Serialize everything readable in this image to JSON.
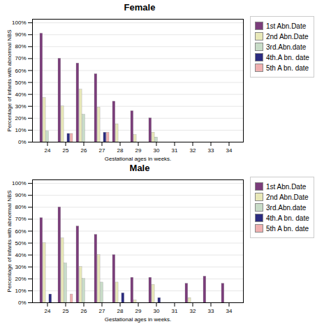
{
  "chart_data": [
    {
      "type": "bar",
      "title": "Female",
      "xlabel": "Gestational ages in weeks.",
      "ylabel": "Percentage of infants with abnormal NBS",
      "categories": [
        "24",
        "25",
        "26",
        "27",
        "28",
        "29",
        "30",
        "31",
        "32",
        "33",
        "34"
      ],
      "series": [
        {
          "name": "1st Abn.Date",
          "color": "#7B3D7B",
          "values": [
            91,
            70,
            66,
            57,
            34,
            26,
            20,
            0,
            0,
            0,
            0
          ]
        },
        {
          "name": "2nd Abn.Date",
          "color": "#E8E8B8",
          "values": [
            37,
            30,
            44,
            29,
            15,
            6,
            8,
            0,
            0,
            0,
            0
          ]
        },
        {
          "name": "3rd.Abn.date",
          "color": "#C8DCC8",
          "values": [
            9,
            0,
            23,
            0,
            0,
            0,
            4,
            0,
            0,
            0,
            0
          ]
        },
        {
          "name": "4th.A bn. date",
          "color": "#2B2B80",
          "values": [
            0,
            7,
            0,
            8,
            0,
            0,
            0,
            0,
            0,
            0,
            0
          ]
        },
        {
          "name": "5th A bn. date",
          "color": "#F0B0B0",
          "values": [
            0,
            7,
            0,
            8,
            0,
            0,
            0,
            0,
            0,
            0,
            0
          ]
        }
      ],
      "ylim": [
        0,
        103
      ],
      "yticks": [
        {
          "value": 0,
          "label": "0%"
        },
        {
          "value": 10,
          "label": "10%"
        },
        {
          "value": 20,
          "label": "20%"
        },
        {
          "value": 30,
          "label": "30%"
        },
        {
          "value": 40,
          "label": "40%"
        },
        {
          "value": 50,
          "label": "50%"
        },
        {
          "value": 60,
          "label": "60%"
        },
        {
          "value": 70,
          "label": "70%"
        },
        {
          "value": 80,
          "label": "80%"
        },
        {
          "value": 90,
          "label": "90%"
        },
        {
          "value": 100,
          "label": "100%"
        }
      ],
      "grid": true,
      "legend": "right"
    },
    {
      "type": "bar",
      "title": "Male",
      "xlabel": "Gestational ages in weeks.",
      "ylabel": "Percentage of infants with abnormal NBS",
      "categories": [
        "24",
        "25",
        "26",
        "27",
        "28",
        "29",
        "30",
        "31",
        "32",
        "33",
        "34"
      ],
      "series": [
        {
          "name": "1st Abn.Date",
          "color": "#7B3D7B",
          "values": [
            71,
            80,
            64,
            57,
            40,
            21,
            21,
            0,
            16,
            22,
            16
          ]
        },
        {
          "name": "2nd Abn.Date",
          "color": "#E8E8B8",
          "values": [
            50,
            54,
            30,
            40,
            17,
            2,
            15,
            0,
            4,
            0,
            0
          ]
        },
        {
          "name": "3rd.Abn.date",
          "color": "#C8DCC8",
          "values": [
            0,
            33,
            20,
            17,
            0,
            0,
            0,
            0,
            0,
            0,
            0
          ]
        },
        {
          "name": "4th.A bn. date",
          "color": "#2B2B80",
          "values": [
            7,
            0,
            0,
            0,
            8,
            0,
            4,
            0,
            0,
            0,
            0
          ]
        },
        {
          "name": "5th A bn. date",
          "color": "#F0B0B0",
          "values": [
            0,
            7,
            0,
            0,
            0,
            0,
            0,
            0,
            0,
            0,
            0
          ]
        }
      ],
      "ylim": [
        0,
        103
      ],
      "yticks": [
        {
          "value": 0,
          "label": "0%"
        },
        {
          "value": 10,
          "label": "10%"
        },
        {
          "value": 20,
          "label": "20%"
        },
        {
          "value": 30,
          "label": "30%"
        },
        {
          "value": 40,
          "label": "40%"
        },
        {
          "value": 50,
          "label": "50%"
        },
        {
          "value": 60,
          "label": "60%"
        },
        {
          "value": 70,
          "label": "70%"
        },
        {
          "value": 80,
          "label": "80%"
        },
        {
          "value": 90,
          "label": "90%"
        },
        {
          "value": 100,
          "label": "100%"
        }
      ],
      "grid": true,
      "legend": "right"
    }
  ]
}
